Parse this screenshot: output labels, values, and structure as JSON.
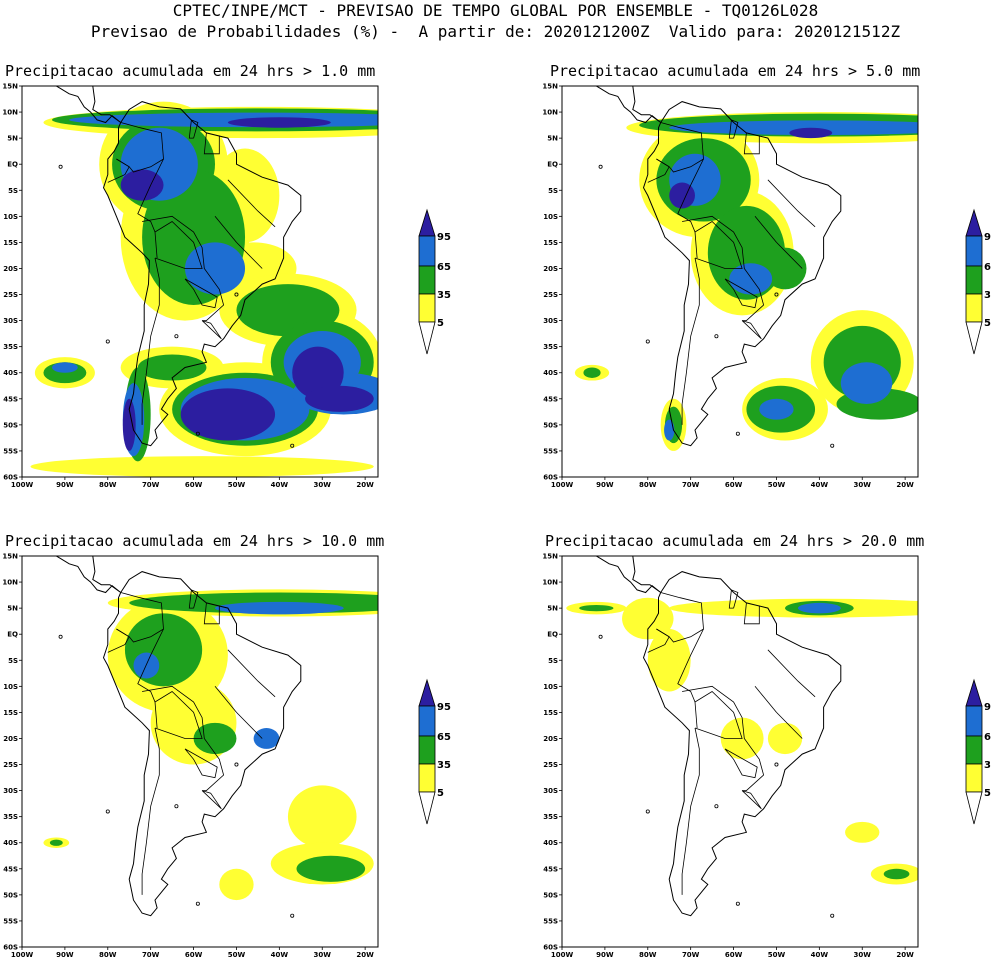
{
  "header": {
    "line1": "CPTEC/INPE/MCT - PREVISAO DE TEMPO GLOBAL POR ENSEMBLE - TQ0126L028",
    "line2": "Previsao de Probabilidades (%) -  A partir de: 2020121200Z  Valido para: 2020121512Z"
  },
  "lat_labels": [
    "15N",
    "10N",
    "5N",
    "EQ",
    "5S",
    "10S",
    "15S",
    "20S",
    "25S",
    "30S",
    "35S",
    "40S",
    "45S",
    "50S",
    "55S",
    "60S"
  ],
  "lon_labels": [
    "100W",
    "90W",
    "80W",
    "70W",
    "60W",
    "50W",
    "40W",
    "30W",
    "20W"
  ],
  "legend": {
    "levels": [
      "95",
      "65",
      "35",
      "5"
    ],
    "colors": {
      "p5": "#ffff33",
      "p35": "#1ea01e",
      "p65": "#1e6ed2",
      "p95": "#2c1ea0"
    }
  },
  "panels": [
    {
      "title": "Precipitacao acumulada em 24 hrs > 1.0 mm"
    },
    {
      "title": "Precipitacao acumulada em 24 hrs > 5.0 mm"
    },
    {
      "title": "Precipitacao acumulada em 24 hrs > 10.0 mm"
    },
    {
      "title": "Precipitacao acumulada em 24 hrs > 20.0 mm"
    }
  ]
}
